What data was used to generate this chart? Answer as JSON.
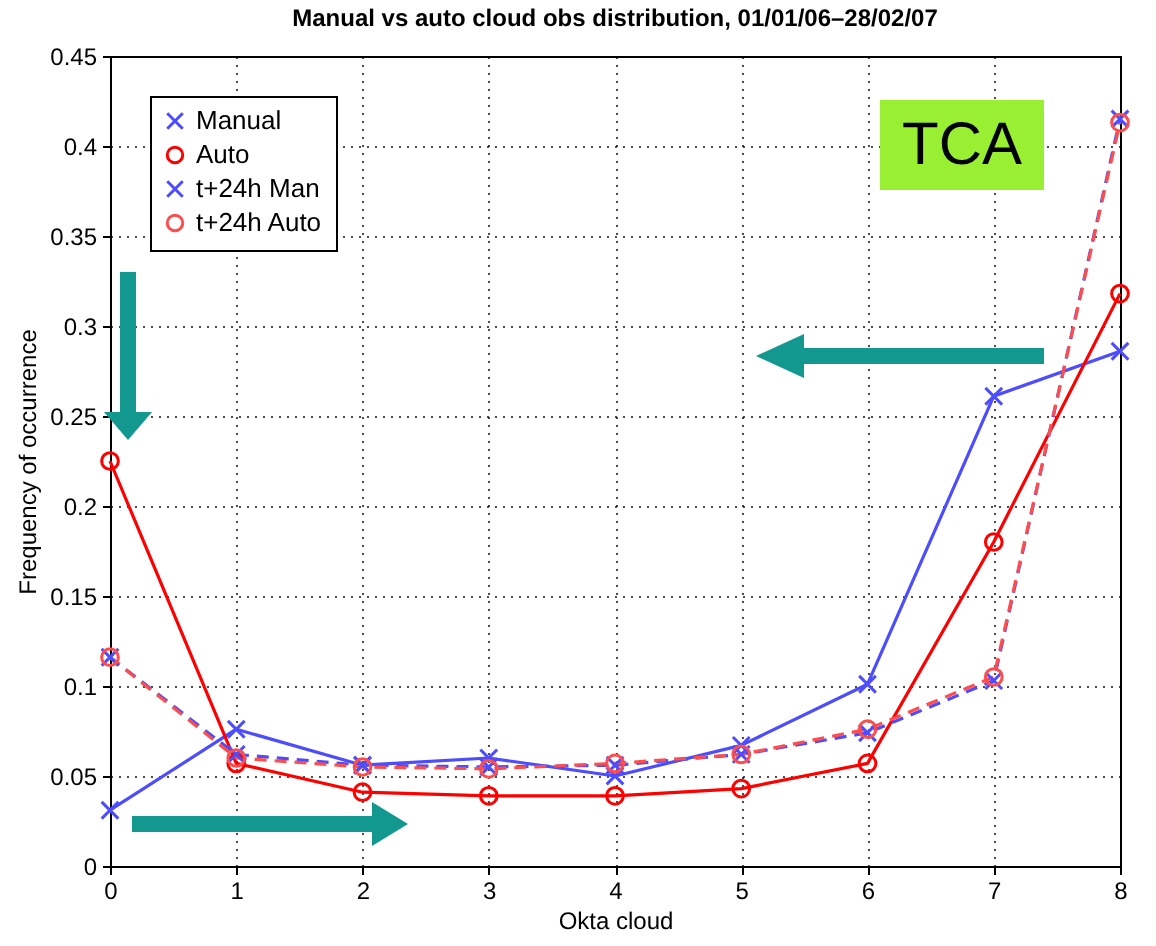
{
  "chart_data": {
    "type": "line",
    "title": "Manual vs auto cloud obs distribution, 01/01/06–28/02/07",
    "xlabel": "Okta cloud",
    "ylabel": "Frequency of occurrence",
    "x": [
      0,
      1,
      2,
      3,
      4,
      5,
      6,
      7,
      8
    ],
    "series": [
      {
        "name": "Manual",
        "color": "#4d4dff",
        "marker": "cross",
        "line_style": "solid",
        "values": [
          0.031,
          0.076,
          0.056,
          0.06,
          0.05,
          0.067,
          0.101,
          0.261,
          0.286
        ]
      },
      {
        "name": "Auto",
        "color": "#ff0000",
        "marker": "circle",
        "line_style": "solid",
        "values": [
          0.225,
          0.057,
          0.041,
          0.039,
          0.039,
          0.043,
          0.057,
          0.18,
          0.318
        ]
      },
      {
        "name": "t+24h Man",
        "color": "#4d4dff",
        "marker": "cross",
        "line_style": "dashed",
        "values": [
          0.116,
          0.062,
          0.056,
          0.055,
          0.056,
          0.062,
          0.074,
          0.103,
          0.415
        ]
      },
      {
        "name": "t+24h Auto",
        "color": "#ff4d4d",
        "marker": "circle",
        "line_style": "dashed",
        "values": [
          0.116,
          0.06,
          0.055,
          0.054,
          0.057,
          0.062,
          0.076,
          0.105,
          0.413
        ]
      }
    ],
    "xlim": [
      0,
      8
    ],
    "xticks": [
      0,
      1,
      2,
      3,
      4,
      5,
      6,
      7,
      8
    ],
    "ylim": [
      0,
      0.45
    ],
    "yticks": [
      0,
      0.05,
      0.1,
      0.15,
      0.2,
      0.25,
      0.3,
      0.35,
      0.4,
      0.45
    ],
    "grid": true,
    "legend": "top left",
    "annotations": [
      "TCA"
    ]
  }
}
